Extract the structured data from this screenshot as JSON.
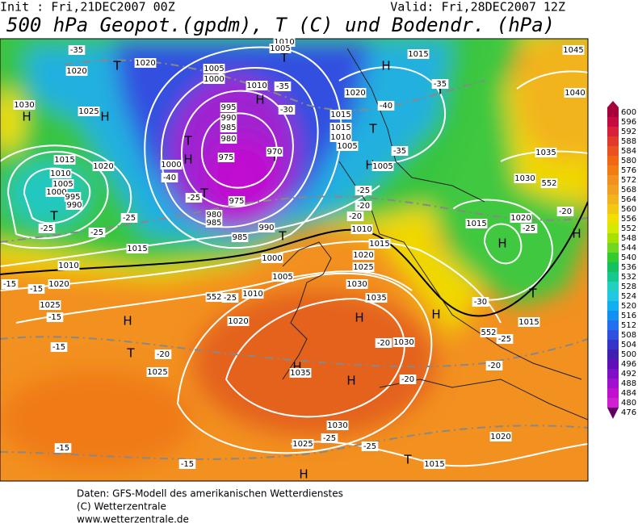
{
  "header": {
    "init": "Init : Fri,21DEC2007 00Z",
    "valid": "Valid: Fri,28DEC2007 12Z",
    "title": "500 hPa Geopot.(gpdm), T (C) und Bodendr. (hPa)"
  },
  "colorbar": {
    "labels": [
      600,
      596,
      592,
      588,
      584,
      580,
      576,
      572,
      568,
      564,
      560,
      556,
      552,
      548,
      544,
      540,
      536,
      532,
      528,
      524,
      520,
      516,
      512,
      508,
      504,
      500,
      496,
      492,
      488,
      484,
      480,
      476
    ],
    "colors": [
      "#a8003c",
      "#c40a40",
      "#d8203a",
      "#e23a2a",
      "#ea5220",
      "#f06814",
      "#f27c12",
      "#f29020",
      "#f2a020",
      "#f2b41c",
      "#f2c810",
      "#f0e000",
      "#d4ea00",
      "#a8e000",
      "#70d820",
      "#30cc30",
      "#14c060",
      "#14c890",
      "#20d0c0",
      "#20c8e4",
      "#10b0f0",
      "#1090f0",
      "#2070f0",
      "#3050e0",
      "#3434c8",
      "#4020b0",
      "#6010b8",
      "#8010c8",
      "#a010d0",
      "#c010d0",
      "#d020d0",
      "#600060"
    ]
  },
  "map": {
    "labels": [
      "H",
      "H",
      "T",
      "H",
      "T",
      "H",
      "T",
      "T",
      "H",
      "T",
      "H",
      "T",
      "T",
      "T",
      "T",
      "H",
      "T",
      "H",
      "H",
      "H",
      "T",
      "H",
      "H",
      "T",
      "H",
      "H",
      "1020",
      "1020",
      "1030",
      "1025",
      "1005",
      "1000",
      "1010",
      "995",
      "990",
      "985",
      "980",
      "975",
      "1000",
      "970",
      "975",
      "980",
      "985",
      "985",
      "990",
      "1015",
      "1010",
      "1005",
      "1000",
      "995",
      "990",
      "1020",
      "1015",
      "1010",
      "1020",
      "1025",
      "1000",
      "1005",
      "1010",
      "1020",
      "1025",
      "1030",
      "1025",
      "1015",
      "1020",
      "1035",
      "1030",
      "1025",
      "1020",
      "1015",
      "1010",
      "1020",
      "1015",
      "1015",
      "1010",
      "1005",
      "1005",
      "1030",
      "1035",
      "1040",
      "1045",
      "1015",
      "1015",
      "1020",
      "1015",
      "1030",
      "1035",
      "1010",
      "1005",
      "-35",
      "-35",
      "-30",
      "-40",
      "-25",
      "-25",
      "-25",
      "-25",
      "-25",
      "-20",
      "-20",
      "-15",
      "-15",
      "-15",
      "-15",
      "-20",
      "-20",
      "-25",
      "-25",
      "-15",
      "-15",
      "-20",
      "-25",
      "-30",
      "-35",
      "-40",
      "-35",
      "-25",
      "-20",
      "-25",
      "-20",
      "552",
      "552",
      "552"
    ]
  },
  "footer": {
    "line1": "Daten: GFS-Modell des amerikanischen Wetterdienstes",
    "line2": "(C) Wetterzentrale",
    "line3": "www.wetterzentrale.de"
  }
}
